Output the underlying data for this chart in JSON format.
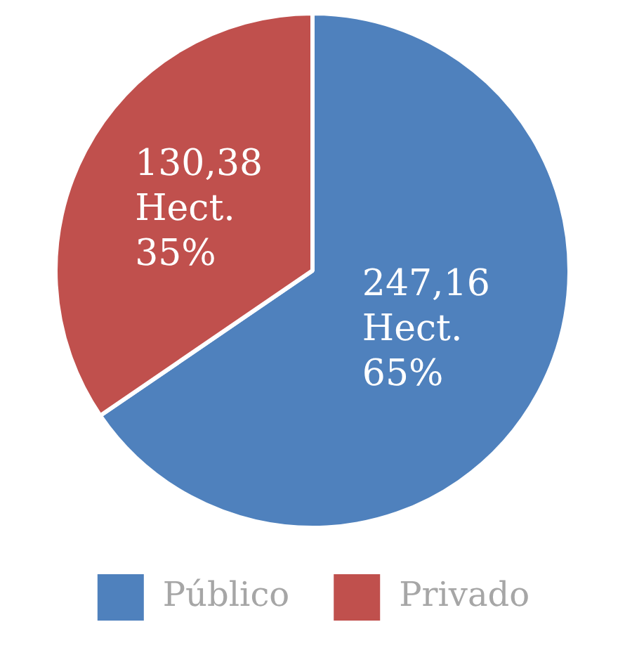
{
  "chart_data": {
    "type": "pie",
    "categories": [
      "Público",
      "Privado"
    ],
    "values": [
      247.16,
      130.38
    ],
    "colors": [
      "#4f81bd",
      "#c0504d"
    ],
    "value_labels": [
      "247,16 Hect. 65%",
      "130,38 Hect. 35%"
    ],
    "legend": "bottom"
  }
}
